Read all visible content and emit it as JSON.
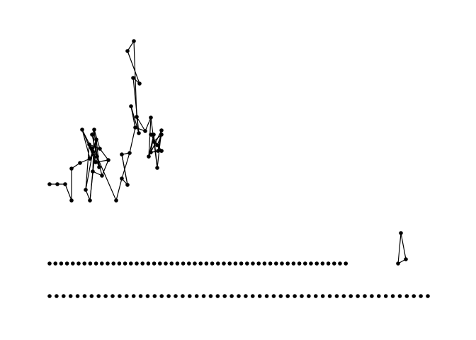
{
  "colors": {
    "background": "#ffffff",
    "ink": "#000000"
  },
  "graph": {
    "cluster_nodes": [
      "n1",
      "n2",
      "n3",
      "n4",
      "n5",
      "n6",
      "n7",
      "n8",
      "n9",
      "n10",
      "n11",
      "n12",
      "n13",
      "n14",
      "n15",
      "n16",
      "n17",
      "n18",
      "n19",
      "n20",
      "n21",
      "n22",
      "n23",
      "n24",
      "n25",
      "n26",
      "n27",
      "n28",
      "n29",
      "n30",
      "n31",
      "n32",
      "n33",
      "n34",
      "n35",
      "n36",
      "n37",
      "n38",
      "n39",
      "n40",
      "n41",
      "n42",
      "n43",
      "n44",
      "n45",
      "n46",
      "n47",
      "n48",
      "n49",
      "n50"
    ],
    "cluster_edges": [
      [
        "n1",
        "n2"
      ],
      [
        "n2",
        "n3"
      ],
      [
        "n3",
        "n4"
      ],
      [
        "n4",
        "n5"
      ],
      [
        "n5",
        "n6"
      ],
      [
        "n6",
        "n7"
      ],
      [
        "n7",
        "n8"
      ],
      [
        "n8",
        "n9"
      ],
      [
        "n9",
        "n10"
      ],
      [
        "n10",
        "n11"
      ],
      [
        "n11",
        "n12"
      ],
      [
        "n12",
        "n13"
      ],
      [
        "n13",
        "n14"
      ],
      [
        "n14",
        "n15"
      ],
      [
        "n15",
        "n16"
      ],
      [
        "n16",
        "n17"
      ],
      [
        "n17",
        "n18"
      ],
      [
        "n18",
        "n19"
      ],
      [
        "n19",
        "n20"
      ],
      [
        "n20",
        "n21"
      ],
      [
        "n21",
        "n22"
      ],
      [
        "n22",
        "n23"
      ],
      [
        "n23",
        "n24"
      ],
      [
        "n24",
        "n25"
      ],
      [
        "n25",
        "n26"
      ],
      [
        "n26",
        "n27"
      ],
      [
        "n27",
        "n28"
      ],
      [
        "n28",
        "n29"
      ],
      [
        "n29",
        "n30"
      ],
      [
        "n30",
        "n31"
      ],
      [
        "n31",
        "n32"
      ],
      [
        "n32",
        "n33"
      ],
      [
        "n33",
        "n34"
      ],
      [
        "n34",
        "n35"
      ],
      [
        "n35",
        "n36"
      ],
      [
        "n36",
        "n37"
      ],
      [
        "n37",
        "n38"
      ],
      [
        "n38",
        "n39"
      ],
      [
        "n39",
        "n40"
      ],
      [
        "n40",
        "n41"
      ],
      [
        "n41",
        "n42"
      ],
      [
        "n42",
        "n43"
      ],
      [
        "n43",
        "n44"
      ],
      [
        "n44",
        "n45"
      ],
      [
        "n45",
        "n46"
      ],
      [
        "n46",
        "n47"
      ],
      [
        "n47",
        "n48"
      ],
      [
        "n48",
        "n49"
      ],
      [
        "n49",
        "n50"
      ]
    ],
    "row1": {
      "dot_count": 52,
      "tail_nodes": [
        "t1",
        "t2",
        "t3"
      ]
    },
    "row2": {
      "dot_count": 55
    }
  }
}
